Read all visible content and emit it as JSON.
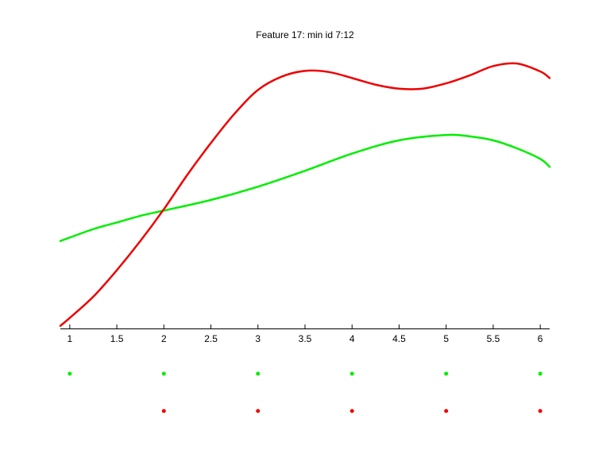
{
  "chart_data": {
    "type": "line",
    "title": "Feature 17: min id 7:12",
    "xlabel": "",
    "ylabel": "",
    "xlim": [
      0.9,
      6.1
    ],
    "ylim": [
      0,
      1
    ],
    "xticks": [
      1,
      1.5,
      2,
      2.5,
      3,
      3.5,
      4,
      4.5,
      5,
      5.5,
      6
    ],
    "xtick_labels": [
      "1",
      "1.5",
      "2",
      "2.5",
      "3",
      "3.5",
      "4",
      "4.5",
      "5",
      "5.5",
      "6"
    ],
    "y_axis_visible": false,
    "grid": false,
    "legend": "none",
    "series": [
      {
        "color": "#00ee00",
        "x": [
          0.9,
          1.25,
          1.5,
          1.75,
          2.0,
          2.5,
          3.0,
          3.5,
          4.0,
          4.5,
          5.0,
          5.25,
          5.5,
          5.75,
          6.0,
          6.1
        ],
        "y": [
          0.33,
          0.375,
          0.4,
          0.425,
          0.445,
          0.485,
          0.535,
          0.595,
          0.66,
          0.71,
          0.73,
          0.725,
          0.71,
          0.68,
          0.64,
          0.61
        ]
      },
      {
        "color": "#ee0000",
        "x": [
          0.9,
          1.0,
          1.25,
          1.5,
          1.75,
          2.0,
          2.25,
          2.5,
          2.75,
          3.0,
          3.25,
          3.5,
          3.75,
          4.0,
          4.25,
          4.5,
          4.75,
          5.0,
          5.25,
          5.5,
          5.75,
          6.0,
          6.1
        ],
        "y": [
          0.01,
          0.04,
          0.12,
          0.22,
          0.33,
          0.45,
          0.58,
          0.7,
          0.81,
          0.9,
          0.95,
          0.972,
          0.968,
          0.945,
          0.92,
          0.905,
          0.905,
          0.925,
          0.955,
          0.99,
          1.0,
          0.97,
          0.945
        ]
      }
    ],
    "markers": [
      {
        "color": "#00ee00",
        "x": [
          1,
          2,
          3,
          4,
          5,
          6
        ]
      },
      {
        "color": "#ee0000",
        "x": [
          2,
          3,
          4,
          5,
          6
        ]
      }
    ]
  }
}
